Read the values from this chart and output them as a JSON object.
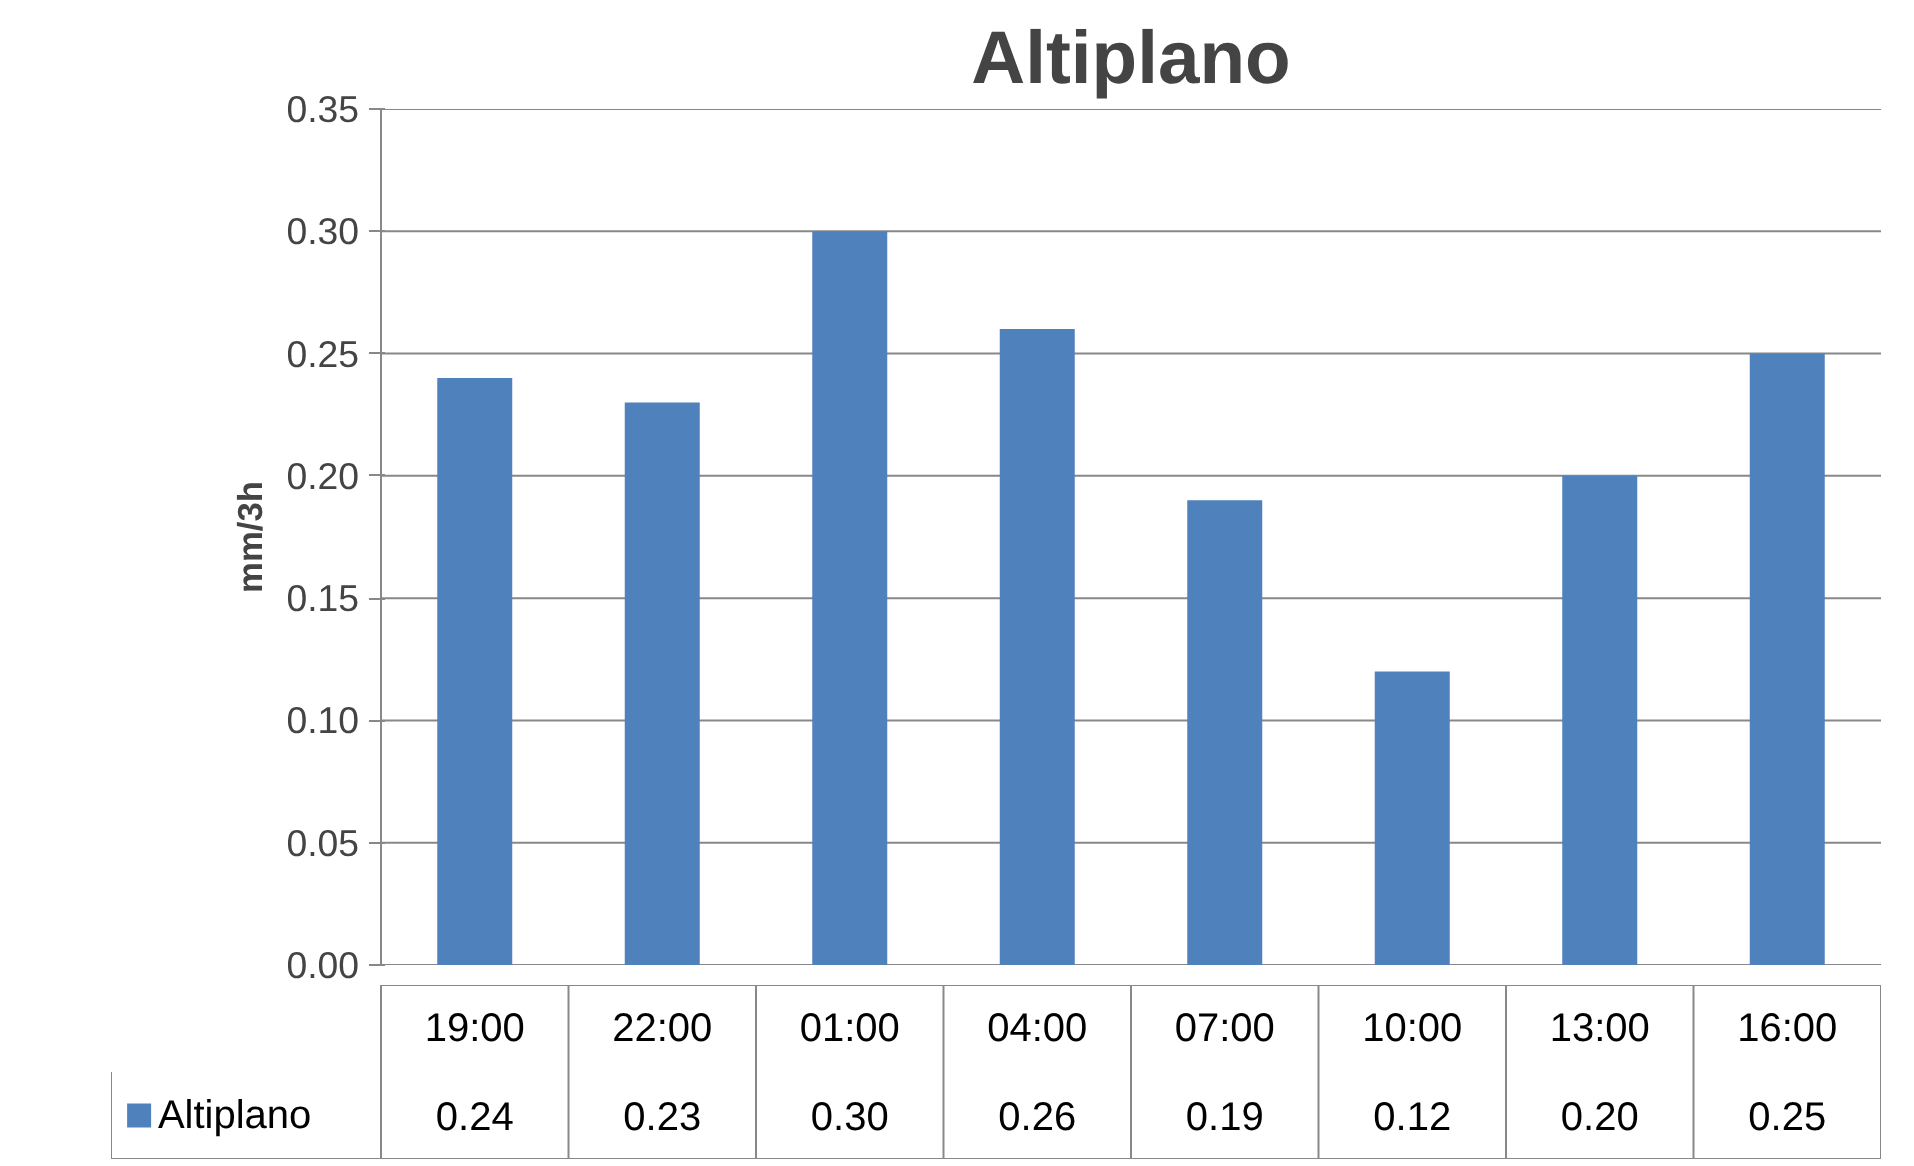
{
  "chart_data": {
    "type": "bar",
    "title": "Altiplano",
    "ylabel": "mm/3h",
    "categories": [
      "19:00",
      "22:00",
      "01:00",
      "04:00",
      "07:00",
      "10:00",
      "13:00",
      "16:00"
    ],
    "series": [
      {
        "name": "Altiplano",
        "color": "#4f81bd",
        "values": [
          0.24,
          0.23,
          0.3,
          0.26,
          0.19,
          0.12,
          0.2,
          0.25
        ],
        "value_labels": [
          "0.24",
          "0.23",
          "0.30",
          "0.26",
          "0.19",
          "0.12",
          "0.20",
          "0.25"
        ]
      }
    ],
    "ylim": [
      0,
      0.35
    ],
    "yticks": [
      {
        "value": 0,
        "label": "0.00"
      },
      {
        "value": 0.05,
        "label": "0.05"
      },
      {
        "value": 0.1,
        "label": "0.10"
      },
      {
        "value": 0.15,
        "label": "0.15"
      },
      {
        "value": 0.2,
        "label": "0.20"
      },
      {
        "value": 0.25,
        "label": "0.25"
      },
      {
        "value": 0.3,
        "label": "0.30"
      },
      {
        "value": 0.35,
        "label": "0.35"
      }
    ],
    "grid": "y",
    "legend": "bottom"
  }
}
